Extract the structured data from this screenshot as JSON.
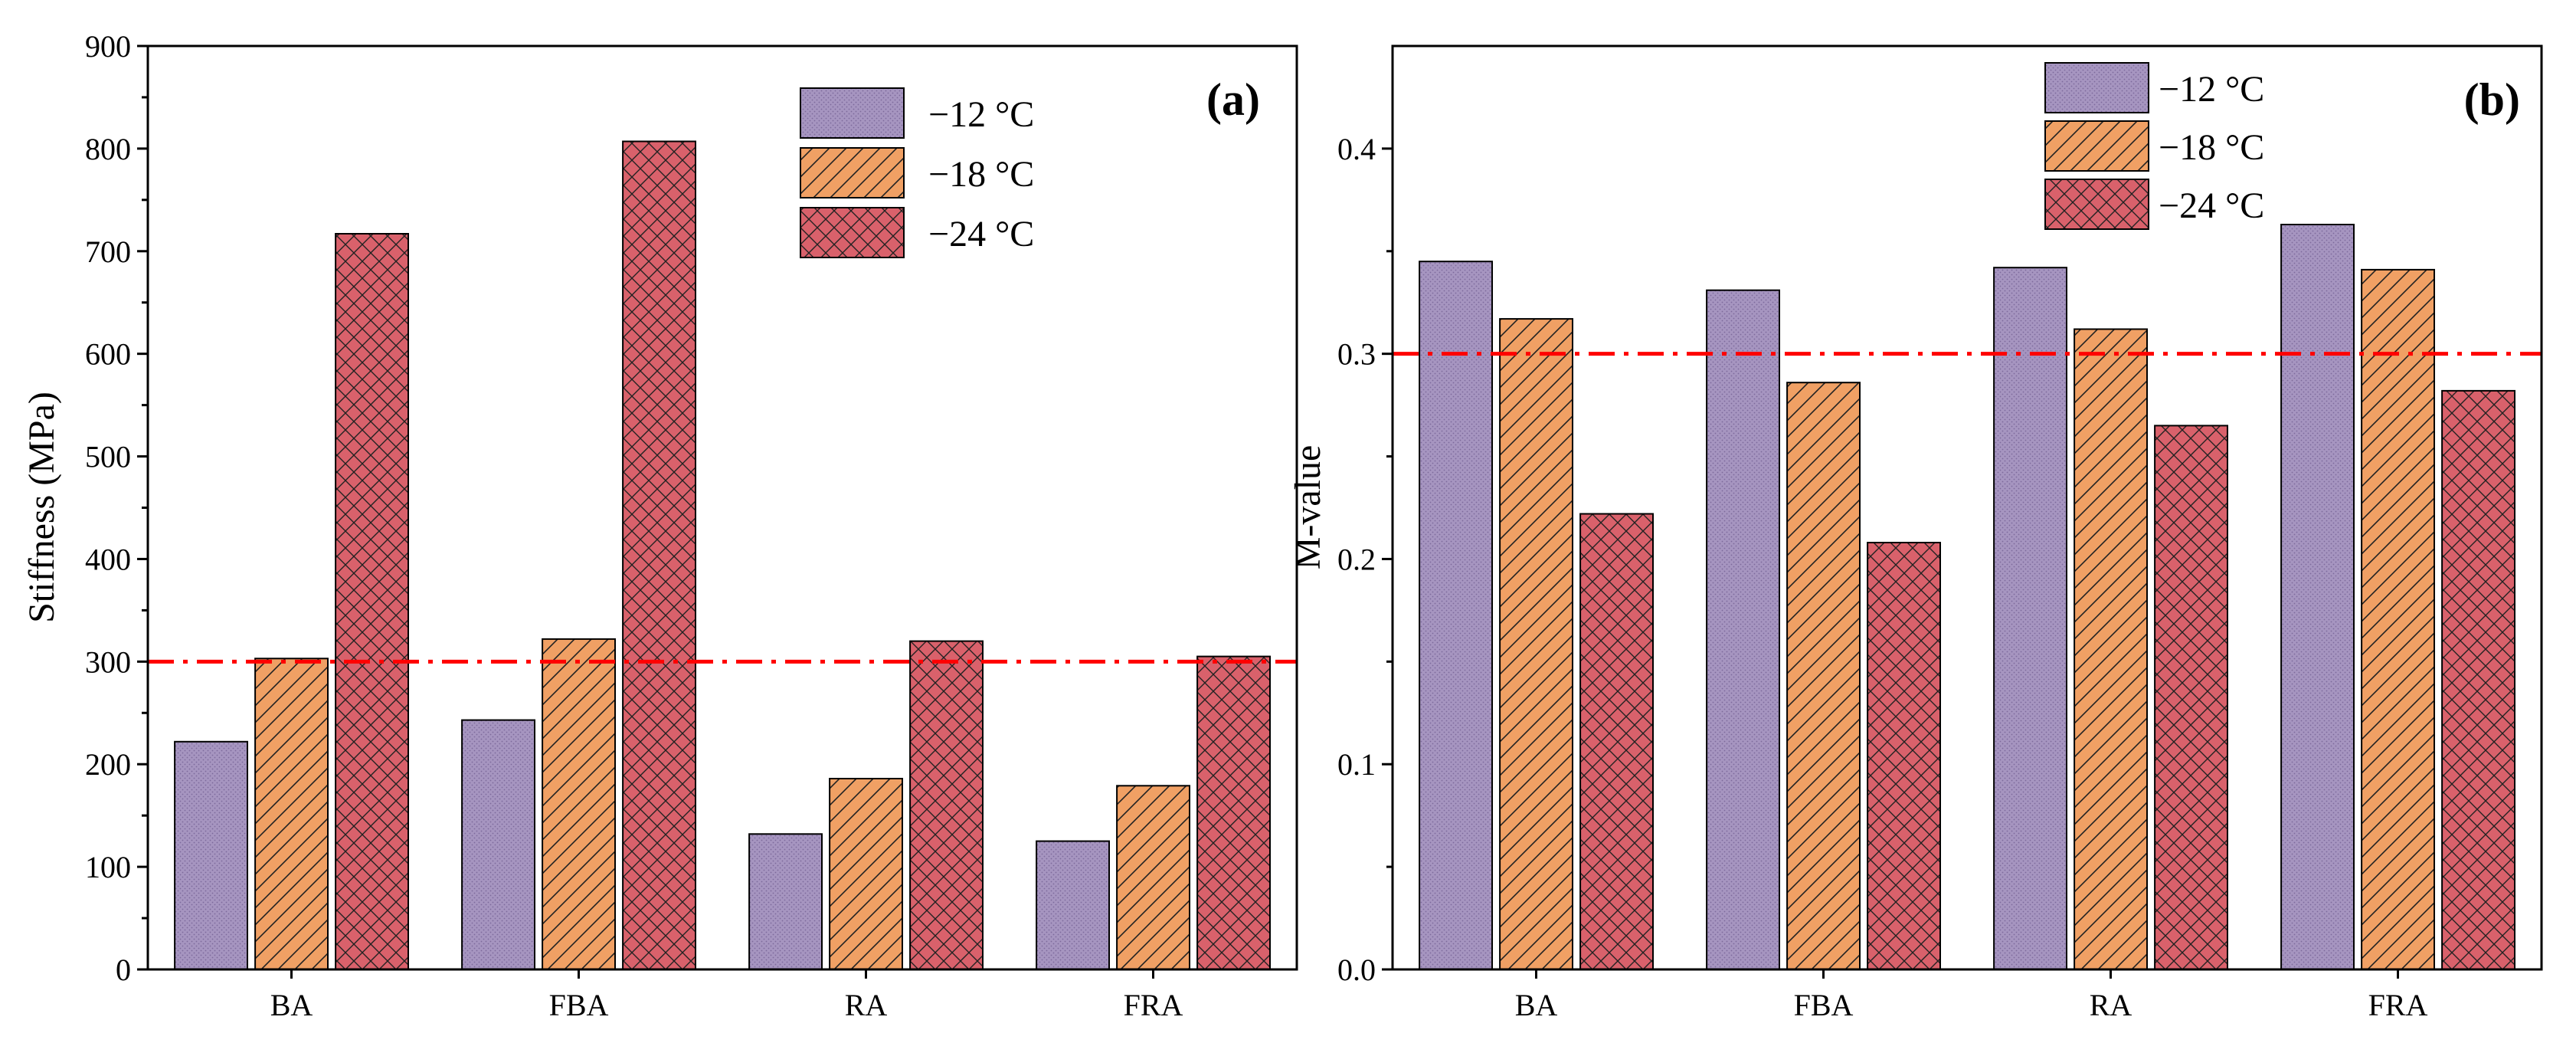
{
  "chart_data": [
    {
      "type": "bar",
      "panel": "(a)",
      "ylabel": "Stiffness (MPa)",
      "xlabel": "",
      "categories": [
        "BA",
        "FBA",
        "RA",
        "FRA"
      ],
      "series": [
        {
          "name": "−12 °C",
          "values": [
            222,
            243,
            132,
            125
          ]
        },
        {
          "name": "−18 °C",
          "values": [
            303,
            322,
            186,
            179
          ]
        },
        {
          "name": "−24 °C",
          "values": [
            717,
            807,
            320,
            305
          ]
        }
      ],
      "ylim": [
        0,
        900
      ],
      "yticks": [
        "0",
        "100",
        "200",
        "300",
        "400",
        "500",
        "600",
        "700",
        "800",
        "900"
      ],
      "reference_line": 300,
      "legend_position": "top-center"
    },
    {
      "type": "bar",
      "panel": "(b)",
      "ylabel": "M-value",
      "xlabel": "",
      "categories": [
        "BA",
        "FBA",
        "RA",
        "FRA"
      ],
      "series": [
        {
          "name": "−12 °C",
          "values": [
            0.345,
            0.331,
            0.342,
            0.363
          ]
        },
        {
          "name": "−18 °C",
          "values": [
            0.317,
            0.286,
            0.312,
            0.341
          ]
        },
        {
          "name": "−24 °C",
          "values": [
            0.222,
            0.208,
            0.265,
            0.282
          ]
        }
      ],
      "ylim": [
        0,
        0.45
      ],
      "yticks": [
        "0.0",
        "0.1",
        "0.2",
        "0.3",
        "0.4"
      ],
      "reference_line": 0.3,
      "legend_position": "top-center"
    }
  ],
  "colors": {
    "series": [
      "#a695c0",
      "#f0a064",
      "#d9616b"
    ],
    "reference_line": "#ff0000",
    "axis": "#000000"
  }
}
